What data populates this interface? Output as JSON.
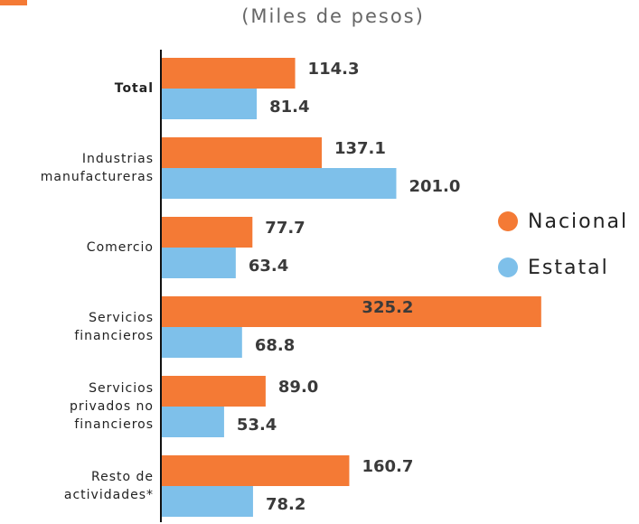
{
  "chart_data": {
    "type": "hbar",
    "subtitle": "(Miles de pesos)",
    "categories": [
      "Total",
      "Industrias\nmanufactureras",
      "Comercio",
      "Servicios\nfinancieros",
      "Servicios\nprivados no\nfinancieros",
      "Resto de\nactividades*"
    ],
    "series": [
      {
        "name": "Nacional",
        "color": "#f47a35",
        "values": [
          114.3,
          137.1,
          77.7,
          325.2,
          89.0,
          160.7
        ],
        "value_labels": [
          "114.3",
          "137.1",
          "77.7",
          "325.2",
          "89.0",
          "160.7"
        ]
      },
      {
        "name": "Estatal",
        "color": "#7ec0ea",
        "values": [
          81.4,
          201.0,
          63.4,
          68.8,
          53.4,
          78.2
        ],
        "value_labels": [
          "81.4",
          "201.0",
          "63.4",
          "68.8",
          "53.4",
          "78.2"
        ]
      }
    ],
    "xlim": [
      0,
      330
    ],
    "legend": "right"
  }
}
